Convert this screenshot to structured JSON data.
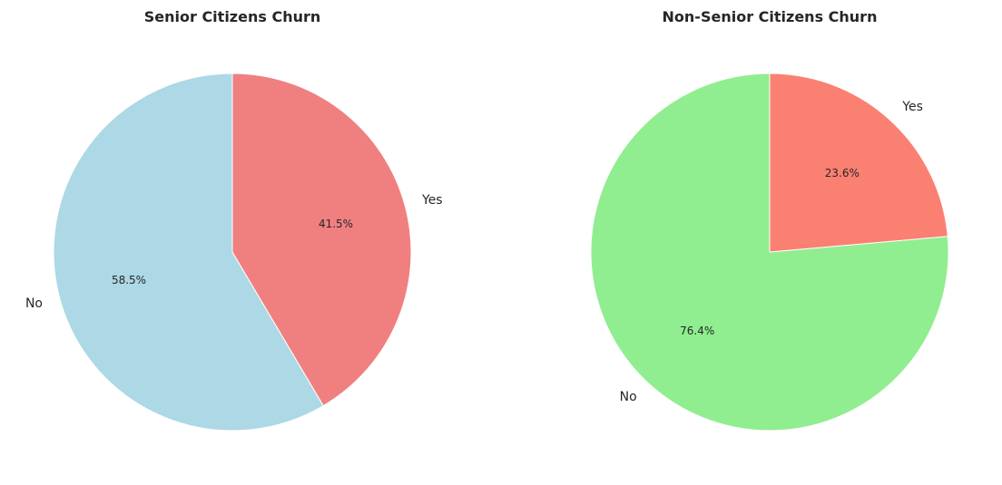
{
  "chart_data": [
    {
      "type": "pie",
      "title": "Senior Citizens Churn",
      "slices": [
        {
          "label": "No",
          "value": 58.5,
          "pct_label": "58.5%",
          "color": "#add8e6"
        },
        {
          "label": "Yes",
          "value": 41.5,
          "pct_label": "41.5%",
          "color": "#f08080"
        }
      ],
      "start_angle_deg": 90,
      "direction": "counterclockwise",
      "legend": "none"
    },
    {
      "type": "pie",
      "title": "Non-Senior Citizens Churn",
      "slices": [
        {
          "label": "No",
          "value": 76.4,
          "pct_label": "76.4%",
          "color": "#90ee90"
        },
        {
          "label": "Yes",
          "value": 23.6,
          "pct_label": "23.6%",
          "color": "#fa8072"
        }
      ],
      "start_angle_deg": 90,
      "direction": "counterclockwise",
      "legend": "none"
    }
  ]
}
